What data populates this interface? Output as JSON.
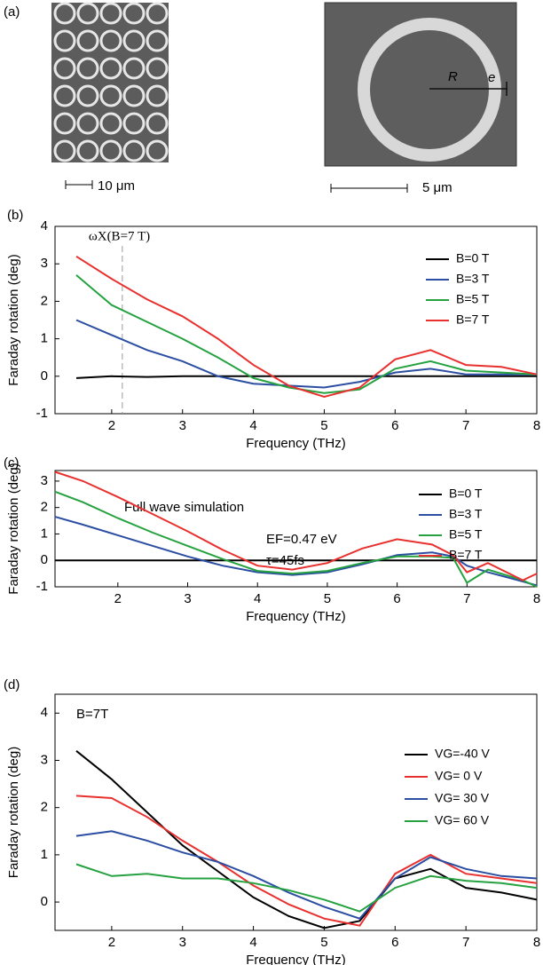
{
  "figure": {
    "panel_a": {
      "label": "(a)",
      "scale_left": "10 μm",
      "scale_right": "5 μm",
      "radius_label": "R",
      "width_label": "e"
    }
  },
  "chart_data": [
    {
      "type": "line",
      "panel": "(b)",
      "xlabel": "Frequency (THz)",
      "ylabel": "Faraday rotation (deg)",
      "xlim": [
        1.2,
        8
      ],
      "ylim": [
        -1,
        4
      ],
      "xticks": [
        2,
        3,
        4,
        5,
        6,
        7,
        8
      ],
      "yticks": [
        -1,
        0,
        1,
        2,
        3,
        4
      ],
      "marker_line": {
        "x": 2.15,
        "label": "ωX(B=7 T)"
      },
      "x": [
        1.5,
        2,
        2.5,
        3,
        3.5,
        4,
        4.5,
        5,
        5.5,
        6,
        6.5,
        7,
        7.5,
        8
      ],
      "series": [
        {
          "name": "B=0 T",
          "color": "#000000",
          "values": [
            -0.05,
            0,
            -0.02,
            0,
            0,
            0,
            0,
            0,
            0,
            0,
            0,
            0,
            0,
            0
          ]
        },
        {
          "name": "B=3 T",
          "color": "#2b4ea2",
          "values": [
            1.5,
            1.1,
            0.7,
            0.4,
            0,
            -0.2,
            -0.25,
            -0.3,
            -0.15,
            0.1,
            0.2,
            0.05,
            0.05,
            0.05
          ]
        },
        {
          "name": "B=5 T",
          "color": "#25a23f",
          "values": [
            2.7,
            1.9,
            1.45,
            1.0,
            0.5,
            -0.05,
            -0.3,
            -0.45,
            -0.35,
            0.2,
            0.4,
            0.15,
            0.1,
            0.05
          ]
        },
        {
          "name": "B=7 T",
          "color": "#e8312f",
          "values": [
            3.2,
            2.6,
            2.05,
            1.6,
            1.0,
            0.3,
            -0.25,
            -0.55,
            -0.3,
            0.45,
            0.7,
            0.3,
            0.25,
            0.05
          ]
        }
      ]
    },
    {
      "type": "line",
      "panel": "(c)",
      "xlabel": "Frequency (THz)",
      "ylabel": "Faraday rotation (deg)",
      "xlim": [
        1.1,
        8
      ],
      "ylim": [
        -1,
        3.4
      ],
      "xticks": [
        2,
        3,
        4,
        5,
        6,
        7,
        8
      ],
      "yticks": [
        -1,
        0,
        1,
        2,
        3
      ],
      "annotations": [
        "Full wave simulation",
        "EF=0.47 eV",
        "τ=45fs"
      ],
      "x": [
        1.1,
        1.5,
        2,
        2.5,
        3,
        3.5,
        4,
        4.5,
        5,
        5.5,
        6,
        6.5,
        6.8,
        7,
        7.3,
        7.8,
        8
      ],
      "series": [
        {
          "name": "B=0 T",
          "color": "#000000",
          "values": [
            0,
            0,
            0,
            0,
            0,
            0,
            0,
            0,
            0,
            0,
            0,
            0,
            0,
            0,
            0,
            0,
            0
          ]
        },
        {
          "name": "B=3 T",
          "color": "#2b4ea2",
          "values": [
            1.65,
            1.35,
            0.95,
            0.55,
            0.15,
            -0.2,
            -0.45,
            -0.55,
            -0.45,
            -0.15,
            0.2,
            0.3,
            0.15,
            -0.2,
            -0.45,
            -0.8,
            -0.95
          ]
        },
        {
          "name": "B=5 T",
          "color": "#25a23f",
          "values": [
            2.6,
            2.2,
            1.6,
            1.05,
            0.55,
            0.05,
            -0.4,
            -0.5,
            -0.4,
            -0.1,
            0.15,
            0.15,
            0.1,
            -0.85,
            -0.35,
            -0.75,
            -1.0
          ]
        },
        {
          "name": "B=7 T",
          "color": "#e8312f",
          "values": [
            3.35,
            3.0,
            2.4,
            1.75,
            1.1,
            0.4,
            -0.2,
            -0.35,
            -0.1,
            0.45,
            0.8,
            0.6,
            0.2,
            -0.45,
            -0.1,
            -0.75,
            -0.5
          ]
        }
      ]
    },
    {
      "type": "line",
      "panel": "(d)",
      "xlabel": "Frequency (THz)",
      "ylabel": "Faraday rotation (deg)",
      "xlim": [
        1.2,
        8
      ],
      "ylim": [
        -0.6,
        4.4
      ],
      "xticks": [
        2,
        3,
        4,
        5,
        6,
        7,
        8
      ],
      "yticks": [
        0,
        1,
        2,
        3,
        4
      ],
      "annotations": [
        "B=7T"
      ],
      "x": [
        1.5,
        2,
        2.5,
        3,
        3.5,
        4,
        4.5,
        5,
        5.5,
        6,
        6.5,
        7,
        7.5,
        8
      ],
      "series": [
        {
          "name": "VG=-40 V",
          "color": "#000000",
          "values": [
            3.2,
            2.6,
            1.9,
            1.2,
            0.65,
            0.1,
            -0.3,
            -0.55,
            -0.4,
            0.5,
            0.7,
            0.3,
            0.2,
            0.05
          ]
        },
        {
          "name": "VG= 0 V",
          "color": "#e8312f",
          "values": [
            2.25,
            2.2,
            1.8,
            1.3,
            0.85,
            0.35,
            -0.05,
            -0.35,
            -0.5,
            0.6,
            1.0,
            0.6,
            0.5,
            0.4
          ]
        },
        {
          "name": "VG= 30 V",
          "color": "#2b4ea2",
          "values": [
            1.4,
            1.5,
            1.3,
            1.05,
            0.85,
            0.55,
            0.2,
            -0.1,
            -0.35,
            0.5,
            0.95,
            0.7,
            0.55,
            0.5
          ]
        },
        {
          "name": "VG= 60 V",
          "color": "#25a23f",
          "values": [
            0.8,
            0.55,
            0.6,
            0.5,
            0.5,
            0.4,
            0.25,
            0.05,
            -0.2,
            0.3,
            0.55,
            0.45,
            0.4,
            0.3
          ]
        }
      ]
    }
  ]
}
